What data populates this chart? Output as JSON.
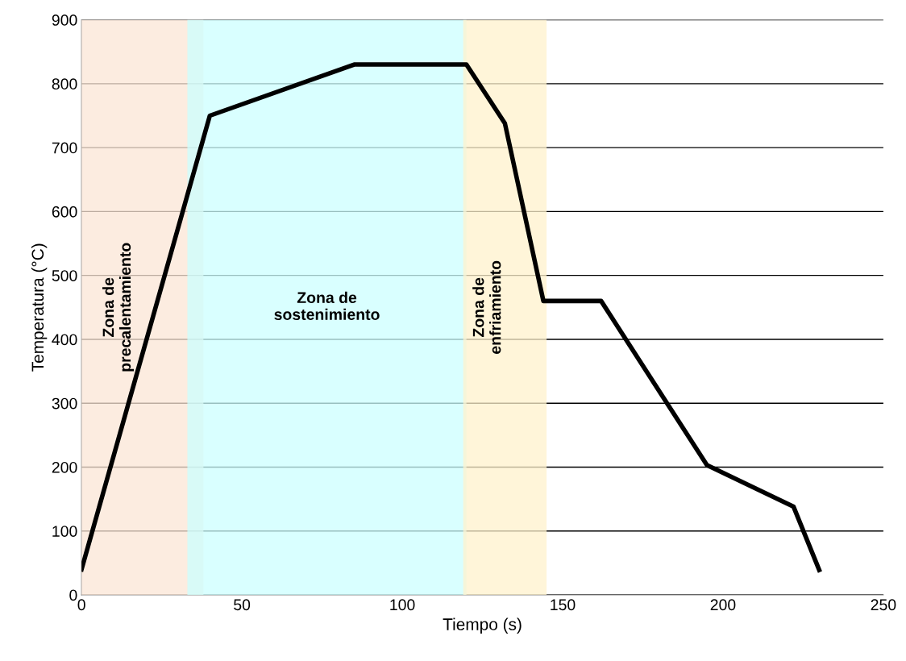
{
  "chart_data": {
    "type": "line",
    "xlabel": "Tiempo (s)",
    "ylabel": "Temperatura (°C)",
    "x": [
      0,
      40,
      85,
      120,
      132,
      144,
      162,
      195,
      222,
      230
    ],
    "series": [
      {
        "color": "#000000",
        "values": [
          40,
          750,
          830,
          830,
          738,
          460,
          460,
          203,
          138,
          39
        ]
      }
    ],
    "xlim": [
      0,
      250
    ],
    "xticks": [
      0,
      50,
      100,
      150,
      200,
      250
    ],
    "ylim": [
      0,
      900
    ],
    "yticks": [
      0,
      100,
      200,
      300,
      400,
      500,
      600,
      700,
      800,
      900
    ],
    "grid": "y",
    "bands": [
      {
        "axis": "x",
        "from": 0,
        "to": 38,
        "label": "Zona de\nprecalentamiento",
        "color": "#fbe5d6"
      },
      {
        "axis": "x",
        "from": 33,
        "to": 120,
        "label": "Zona de\nsostenimiento",
        "color": "#ccffff"
      },
      {
        "axis": "x",
        "from": 119,
        "to": 145,
        "label": "Zona de\nenfriamiento",
        "color": "#fff2cc"
      }
    ]
  }
}
